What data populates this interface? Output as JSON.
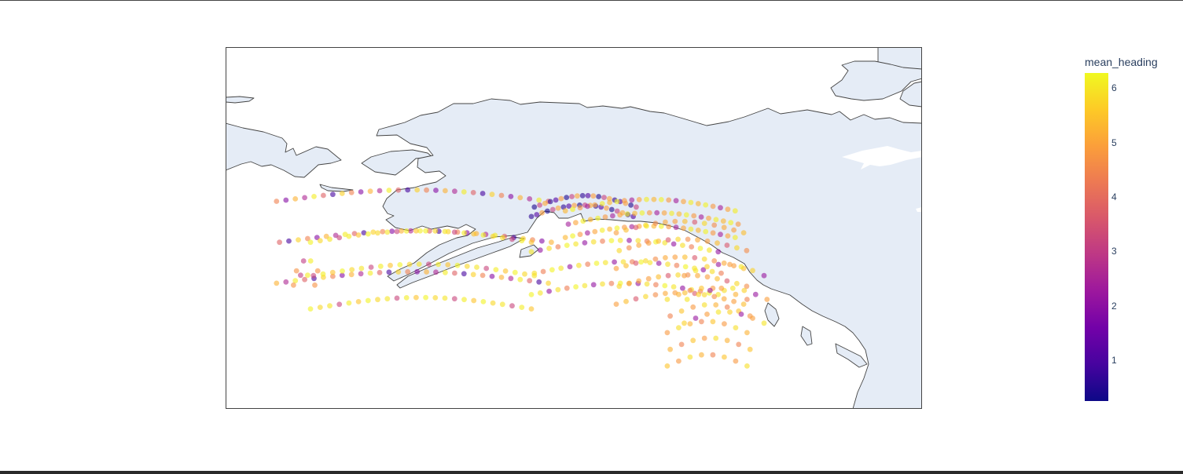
{
  "colorbar": {
    "title": "mean_heading",
    "min": 0.25,
    "max": 6.28,
    "ticks": [
      "1",
      "2",
      "3",
      "4",
      "5",
      "6"
    ],
    "colorscale": [
      "#0d0887",
      "#46039f",
      "#7201a8",
      "#9c179e",
      "#bd3786",
      "#d8576b",
      "#ed7953",
      "#fb9f3a",
      "#fdca26",
      "#f0f921"
    ]
  },
  "map": {
    "land_color": "#E5ECF6",
    "coastline_color": "#444444",
    "marker_opacity": 0.6
  },
  "chart_data": {
    "type": "scatter",
    "title": "",
    "color_variable": "mean_heading",
    "color_range": [
      0.25,
      6.28
    ],
    "bands": [
      {
        "lon_start": -180,
        "lon_end": -148,
        "lat_start": 51.2,
        "lat_end": 59.8,
        "rows": 3,
        "cols": 30,
        "hue_pattern": [
          5.2,
          2.6,
          6.1,
          3.8,
          0.9,
          5.7,
          4.4,
          1.9
        ]
      },
      {
        "lon_start": -176,
        "lon_end": -150,
        "lat_start": 48.5,
        "lat_end": 55.5,
        "rows": 3,
        "cols": 24,
        "hue_pattern": [
          6.2,
          5.8,
          6.0,
          3.2,
          6.1,
          5.5
        ]
      },
      {
        "lon_start": -150,
        "lon_end": -138,
        "lat_start": 58.2,
        "lat_end": 59.2,
        "rows": 2,
        "cols": 20,
        "hue_pattern": [
          0.6,
          1.1,
          4.9,
          0.4,
          3.1,
          5.1
        ]
      },
      {
        "lon_start": -146,
        "lon_end": -126,
        "lat_start": 56.0,
        "lat_end": 58.8,
        "rows": 3,
        "cols": 24,
        "hue_pattern": [
          5.3,
          6.2,
          4.8,
          2.4,
          5.0,
          6.1
        ]
      },
      {
        "lon_start": -150,
        "lon_end": -128,
        "lat_start": 50.0,
        "lat_end": 54.5,
        "rows": 3,
        "cols": 22,
        "hue_pattern": [
          6.2,
          6.0,
          2.1,
          5.9,
          4.3
        ]
      },
      {
        "lon_start": -140,
        "lon_end": -125,
        "lat_start": 49.0,
        "lat_end": 56.5,
        "rows": 5,
        "cols": 14,
        "hue_pattern": [
          4.9,
          5.4,
          3.6,
          5.8,
          4.6,
          5.1
        ]
      },
      {
        "lon_start": -134,
        "lon_end": -124.6,
        "lat_start": 42.5,
        "lat_end": 49.5,
        "rows": 5,
        "cols": 8,
        "hue_pattern": [
          5.5,
          4.8,
          5.9,
          5.2,
          4.4
        ]
      },
      {
        "lon_start": -132,
        "lon_end": -122.6,
        "lat_start": 47.0,
        "lat_end": 52.0,
        "rows": 3,
        "cols": 8,
        "hue_pattern": [
          5.7,
          2.2,
          4.9,
          6.0
        ]
      },
      {
        "lon_start": -178,
        "lon_end": -175.5,
        "lat_start": 51.0,
        "lat_end": 52.5,
        "rows": 2,
        "cols": 4,
        "hue_pattern": [
          4.7,
          3.0,
          6.1
        ]
      }
    ]
  }
}
